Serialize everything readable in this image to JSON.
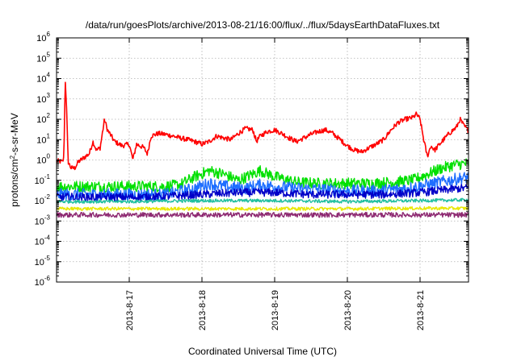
{
  "chart_data": {
    "type": "line",
    "title": "/data/run/goesPlots/archive/2013-08-21/16:00/flux/../flux/5daysEarthDataFluxes.txt",
    "xlabel": "Coordinated Universal Time (UTC)",
    "ylabel": "protons/cm2-s-sr-MeV",
    "ylabel_parts": {
      "pre": "protons/cm",
      "sup": "2",
      "post": "-s-sr-MeV"
    },
    "yscale": "log",
    "ylim": [
      1e-06,
      1000000.0
    ],
    "xlim": [
      "2013-08-16 00:00",
      "2013-08-21 16:00"
    ],
    "grid": true,
    "x_ticks": [
      "2013-8-17",
      "2013-8-18",
      "2013-8-19",
      "2013-8-20",
      "2013-8-21"
    ],
    "x_tick_days": [
      1,
      2,
      3,
      4,
      5
    ],
    "y_ticks": [
      {
        "base": "10",
        "exp": "6"
      },
      {
        "base": "10",
        "exp": "5"
      },
      {
        "base": "10",
        "exp": "4"
      },
      {
        "base": "10",
        "exp": "3"
      },
      {
        "base": "10",
        "exp": "2"
      },
      {
        "base": "10",
        "exp": "1"
      },
      {
        "base": "10",
        "exp": "0"
      },
      {
        "base": "10",
        "exp": "-1"
      },
      {
        "base": "10",
        "exp": "-2"
      },
      {
        "base": "10",
        "exp": "-3"
      },
      {
        "base": "10",
        "exp": "-4"
      },
      {
        "base": "10",
        "exp": "-5"
      },
      {
        "base": "10",
        "exp": "-6"
      }
    ],
    "series": [
      {
        "color": "#ff0000",
        "noise": 0.12,
        "points": [
          [
            0.0,
            0.9
          ],
          [
            0.08,
            0.8
          ],
          [
            0.1,
            1.2
          ],
          [
            0.12,
            10000
          ],
          [
            0.14,
            200
          ],
          [
            0.16,
            0.8
          ],
          [
            0.2,
            0.4
          ],
          [
            0.25,
            0.4
          ],
          [
            0.3,
            0.8
          ],
          [
            0.4,
            1.5
          ],
          [
            0.45,
            2
          ],
          [
            0.5,
            8
          ],
          [
            0.55,
            3
          ],
          [
            0.6,
            4
          ],
          [
            0.66,
            100
          ],
          [
            0.7,
            30
          ],
          [
            0.8,
            8
          ],
          [
            0.9,
            5
          ],
          [
            1.0,
            6
          ],
          [
            1.05,
            1
          ],
          [
            1.1,
            6
          ],
          [
            1.2,
            4
          ],
          [
            1.25,
            2
          ],
          [
            1.3,
            15
          ],
          [
            1.4,
            20
          ],
          [
            1.5,
            18
          ],
          [
            1.6,
            15
          ],
          [
            1.7,
            12
          ],
          [
            1.8,
            10
          ],
          [
            1.9,
            8
          ],
          [
            2.0,
            6
          ],
          [
            2.1,
            8
          ],
          [
            2.2,
            15
          ],
          [
            2.3,
            12
          ],
          [
            2.4,
            10
          ],
          [
            2.5,
            20
          ],
          [
            2.6,
            35
          ],
          [
            2.7,
            30
          ],
          [
            2.75,
            8
          ],
          [
            2.8,
            15
          ],
          [
            2.9,
            25
          ],
          [
            3.0,
            30
          ],
          [
            3.1,
            20
          ],
          [
            3.2,
            12
          ],
          [
            3.3,
            8
          ],
          [
            3.4,
            12
          ],
          [
            3.5,
            18
          ],
          [
            3.6,
            25
          ],
          [
            3.7,
            30
          ],
          [
            3.8,
            20
          ],
          [
            3.9,
            10
          ],
          [
            4.0,
            5
          ],
          [
            4.1,
            3
          ],
          [
            4.2,
            2.5
          ],
          [
            4.3,
            4
          ],
          [
            4.4,
            6
          ],
          [
            4.5,
            10
          ],
          [
            4.6,
            30
          ],
          [
            4.7,
            70
          ],
          [
            4.8,
            100
          ],
          [
            4.9,
            120
          ],
          [
            4.95,
            180
          ],
          [
            5.0,
            100
          ],
          [
            5.05,
            10
          ],
          [
            5.1,
            1.5
          ],
          [
            5.15,
            5
          ],
          [
            5.2,
            3
          ],
          [
            5.3,
            8
          ],
          [
            5.4,
            20
          ],
          [
            5.5,
            40
          ],
          [
            5.55,
            100
          ],
          [
            5.6,
            50
          ],
          [
            5.7,
            20
          ]
        ]
      },
      {
        "color": "#00e000",
        "noise": 0.28,
        "points": [
          [
            0.0,
            0.05
          ],
          [
            0.5,
            0.05
          ],
          [
            1.0,
            0.05
          ],
          [
            1.5,
            0.05
          ],
          [
            1.7,
            0.06
          ],
          [
            1.9,
            0.15
          ],
          [
            2.1,
            0.3
          ],
          [
            2.3,
            0.2
          ],
          [
            2.5,
            0.1
          ],
          [
            2.7,
            0.2
          ],
          [
            2.8,
            0.3
          ],
          [
            3.0,
            0.15
          ],
          [
            3.3,
            0.08
          ],
          [
            3.6,
            0.07
          ],
          [
            4.0,
            0.07
          ],
          [
            4.3,
            0.07
          ],
          [
            4.6,
            0.08
          ],
          [
            4.9,
            0.1
          ],
          [
            5.1,
            0.2
          ],
          [
            5.3,
            0.4
          ],
          [
            5.5,
            0.6
          ],
          [
            5.7,
            0.7
          ]
        ]
      },
      {
        "color": "#1e6eff",
        "noise": 0.3,
        "points": [
          [
            0.0,
            0.02
          ],
          [
            0.5,
            0.02
          ],
          [
            1.0,
            0.02
          ],
          [
            1.5,
            0.02
          ],
          [
            1.9,
            0.04
          ],
          [
            2.1,
            0.07
          ],
          [
            2.3,
            0.05
          ],
          [
            2.6,
            0.04
          ],
          [
            2.8,
            0.06
          ],
          [
            3.0,
            0.05
          ],
          [
            3.3,
            0.04
          ],
          [
            3.7,
            0.035
          ],
          [
            4.0,
            0.03
          ],
          [
            4.4,
            0.03
          ],
          [
            4.8,
            0.04
          ],
          [
            5.1,
            0.06
          ],
          [
            5.4,
            0.1
          ],
          [
            5.7,
            0.15
          ]
        ]
      },
      {
        "color": "#0000c8",
        "noise": 0.2,
        "points": [
          [
            0.0,
            0.015
          ],
          [
            0.5,
            0.015
          ],
          [
            1.0,
            0.015
          ],
          [
            1.5,
            0.016
          ],
          [
            2.0,
            0.02
          ],
          [
            2.5,
            0.025
          ],
          [
            3.0,
            0.025
          ],
          [
            3.5,
            0.02
          ],
          [
            4.0,
            0.02
          ],
          [
            4.5,
            0.02
          ],
          [
            5.0,
            0.025
          ],
          [
            5.4,
            0.035
          ],
          [
            5.7,
            0.045
          ]
        ]
      },
      {
        "color": "#20c0a0",
        "noise": 0.08,
        "points": [
          [
            0.0,
            0.009
          ],
          [
            1.0,
            0.009
          ],
          [
            2.0,
            0.01
          ],
          [
            3.0,
            0.01
          ],
          [
            4.0,
            0.009
          ],
          [
            5.0,
            0.01
          ],
          [
            5.7,
            0.011
          ]
        ]
      },
      {
        "color": "#e8e800",
        "noise": 0.08,
        "points": [
          [
            0.0,
            0.004
          ],
          [
            1.0,
            0.004
          ],
          [
            2.0,
            0.004
          ],
          [
            3.0,
            0.004
          ],
          [
            4.0,
            0.004
          ],
          [
            5.0,
            0.0042
          ],
          [
            5.7,
            0.0042
          ]
        ]
      },
      {
        "color": "#8e2a72",
        "noise": 0.12,
        "points": [
          [
            0.0,
            0.002
          ],
          [
            1.0,
            0.002
          ],
          [
            2.0,
            0.002
          ],
          [
            3.0,
            0.002
          ],
          [
            4.0,
            0.002
          ],
          [
            5.0,
            0.002
          ],
          [
            5.7,
            0.002
          ]
        ]
      }
    ]
  }
}
